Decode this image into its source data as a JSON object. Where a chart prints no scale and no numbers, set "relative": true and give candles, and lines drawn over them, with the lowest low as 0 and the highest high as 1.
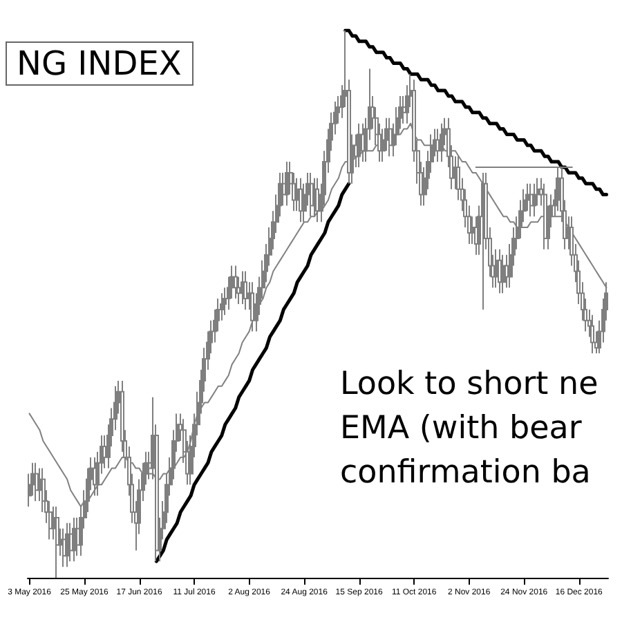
{
  "chart_data": {
    "type": "candlestick",
    "title": "NG INDEX",
    "annotations": [
      "Look to short ne\nEMA (with bear\nconfirmation ba"
    ],
    "relative": true,
    "tick_labels": "x",
    "marker": "none",
    "line_style": "solid",
    "categories": [
      "3 May 2016",
      null,
      null,
      null,
      null,
      null,
      null,
      null,
      null,
      null,
      null,
      null,
      null,
      null,
      null,
      null,
      "25 May 2016",
      null,
      null,
      null,
      null,
      null,
      null,
      null,
      null,
      null,
      null,
      null,
      null,
      null,
      null,
      null,
      "17 Jun 2016",
      null,
      null,
      null,
      null,
      null,
      null,
      null,
      null,
      null,
      null,
      null,
      null,
      null,
      null,
      null,
      "11 Jul 2016",
      null,
      null,
      null,
      null,
      null,
      null,
      null,
      null,
      null,
      null,
      null,
      null,
      null,
      null,
      null,
      "2 Aug 2016",
      null,
      null,
      null,
      null,
      null,
      null,
      null,
      null,
      null,
      null,
      null,
      null,
      null,
      null,
      null,
      "24 Aug 2016",
      null,
      null,
      null,
      null,
      null,
      null,
      null,
      null,
      null,
      null,
      null,
      null,
      null,
      null,
      null,
      "15 Sep 2016",
      null,
      null,
      null,
      null,
      null,
      null,
      null,
      null,
      null,
      null,
      null,
      null,
      null,
      null,
      null,
      "11 Oct 2016",
      null,
      null,
      null,
      null,
      null,
      null,
      null,
      null,
      null,
      null,
      null,
      null,
      null,
      null,
      null,
      "2 Nov 2016",
      null,
      null,
      null,
      null,
      null,
      null,
      null,
      null,
      null,
      null,
      null,
      null,
      null,
      null,
      null,
      "24 Nov 2016",
      null,
      null,
      null,
      null,
      null,
      null,
      null,
      null,
      null,
      null,
      null,
      null,
      null,
      null,
      null,
      "16 Dec 2016",
      null,
      null,
      null,
      null,
      null,
      null,
      null,
      null
    ],
    "series": [
      {
        "type": "line",
        "color": "#808080",
        "values": [
          0.3,
          0.29,
          0.28,
          0.27,
          0.25,
          0.24,
          0.23,
          0.22,
          0.21,
          0.2,
          0.19,
          0.18,
          0.16,
          0.15,
          0.14,
          0.13,
          0.14,
          0.14,
          0.15,
          0.16,
          0.17,
          0.17,
          0.18,
          0.19,
          0.2,
          0.2,
          0.21,
          0.22,
          0.22,
          0.21,
          0.21,
          0.2,
          0.2,
          0.19,
          0.19,
          0.19,
          0.19,
          0.18,
          0.18,
          0.19,
          0.19,
          0.2,
          0.2,
          0.21,
          0.22,
          0.22,
          0.23,
          0.25,
          0.28,
          0.3,
          0.31,
          0.32,
          0.32,
          0.33,
          0.34,
          0.35,
          0.35,
          0.36,
          0.37,
          0.39,
          0.4,
          0.41,
          0.43,
          0.44,
          0.45,
          0.47,
          0.48,
          0.5,
          0.51,
          0.53,
          0.54,
          0.56,
          0.57,
          0.58,
          0.59,
          0.6,
          0.61,
          0.62,
          0.63,
          0.64,
          0.65,
          0.65,
          0.66,
          0.66,
          0.67,
          0.67,
          0.68,
          0.69,
          0.71,
          0.72,
          0.73,
          0.75,
          0.76,
          0.76,
          0.76,
          0.77,
          0.77,
          0.78,
          0.78,
          0.78,
          0.78,
          0.79,
          0.79,
          0.79,
          0.8,
          0.8,
          0.8,
          0.81,
          0.81,
          0.82,
          0.82,
          0.83,
          0.81,
          0.8,
          0.8,
          0.79,
          0.79,
          0.79,
          0.79,
          0.79,
          0.79,
          0.78,
          0.78,
          0.78,
          0.78,
          0.77,
          0.76,
          0.76,
          0.75,
          0.74,
          0.74,
          0.73,
          0.72,
          0.71,
          0.7,
          0.69,
          0.68,
          0.67,
          0.66,
          0.66,
          0.65,
          0.65,
          0.64,
          0.64,
          0.64,
          0.64,
          0.65,
          0.65,
          0.65,
          0.66,
          0.66,
          0.66,
          0.66,
          0.66,
          0.66,
          0.66,
          0.65,
          0.64,
          0.63,
          0.62,
          0.61,
          0.6,
          0.59,
          0.58,
          0.57,
          0.56,
          0.55,
          0.54,
          0.53
        ]
      },
      {
        "type": "line",
        "color": "#000000",
        "values": [
          null,
          null,
          null,
          null,
          null,
          null,
          null,
          null,
          null,
          null,
          null,
          null,
          null,
          null,
          null,
          null,
          null,
          null,
          null,
          null,
          null,
          null,
          null,
          null,
          null,
          null,
          null,
          null,
          null,
          null,
          null,
          null,
          null,
          null,
          null,
          null,
          null,
          0.03,
          0.04,
          0.05,
          0.07,
          0.08,
          0.09,
          0.1,
          0.12,
          0.13,
          0.14,
          0.15,
          0.17,
          0.18,
          0.19,
          0.2,
          0.21,
          0.23,
          0.24,
          0.25,
          0.26,
          0.28,
          0.29,
          0.3,
          0.31,
          0.33,
          0.34,
          0.35,
          0.36,
          0.38,
          0.39,
          0.4,
          0.41,
          0.42,
          0.44,
          0.45,
          0.46,
          0.47,
          0.49,
          0.5,
          0.51,
          0.52,
          0.54,
          0.55,
          0.56,
          0.57,
          0.59,
          0.6,
          0.61,
          0.62,
          0.63,
          0.65,
          0.66,
          0.67,
          0.68,
          0.7,
          0.71,
          0.72,
          null,
          null,
          null,
          null,
          null,
          null,
          null,
          null,
          null,
          null,
          null,
          null,
          null,
          null,
          null,
          null,
          null,
          null,
          null,
          null,
          null,
          null,
          null,
          null,
          null,
          null,
          null,
          null,
          null,
          null,
          null,
          null,
          null,
          null,
          null,
          null,
          null,
          null,
          null,
          null,
          null,
          null,
          null,
          null,
          null,
          null,
          null,
          null,
          null,
          null,
          null,
          null,
          null,
          null,
          null,
          null,
          null,
          null,
          null,
          null,
          null,
          null,
          null,
          null,
          null,
          null,
          null,
          null,
          null,
          null,
          null,
          null,
          null,
          null,
          null
        ]
      },
      {
        "type": "line",
        "color": "#000000",
        "values": [
          null,
          null,
          null,
          null,
          null,
          null,
          null,
          null,
          null,
          null,
          null,
          null,
          null,
          null,
          null,
          null,
          null,
          null,
          null,
          null,
          null,
          null,
          null,
          null,
          null,
          null,
          null,
          null,
          null,
          null,
          null,
          null,
          null,
          null,
          null,
          null,
          null,
          null,
          null,
          null,
          null,
          null,
          null,
          null,
          null,
          null,
          null,
          null,
          null,
          null,
          null,
          null,
          null,
          null,
          null,
          null,
          null,
          null,
          null,
          null,
          null,
          null,
          null,
          null,
          null,
          null,
          null,
          null,
          null,
          null,
          null,
          null,
          null,
          null,
          null,
          null,
          null,
          null,
          null,
          null,
          null,
          null,
          null,
          null,
          null,
          null,
          null,
          null,
          null,
          null,
          null,
          null,
          1.0,
          1.0,
          0.99,
          0.99,
          0.98,
          0.98,
          0.98,
          0.97,
          0.97,
          0.96,
          0.96,
          0.96,
          0.95,
          0.95,
          0.94,
          0.94,
          0.94,
          0.93,
          0.93,
          0.92,
          0.92,
          0.92,
          0.91,
          0.91,
          0.91,
          0.9,
          0.9,
          0.89,
          0.89,
          0.89,
          0.88,
          0.88,
          0.87,
          0.87,
          0.87,
          0.86,
          0.86,
          0.85,
          0.85,
          0.85,
          0.84,
          0.84,
          0.83,
          0.83,
          0.83,
          0.82,
          0.82,
          0.81,
          0.81,
          0.81,
          0.8,
          0.8,
          0.8,
          0.79,
          0.79,
          0.78,
          0.78,
          0.78,
          0.77,
          0.77,
          0.76,
          0.76,
          0.76,
          0.75,
          0.75,
          0.74,
          0.74,
          0.74,
          0.73,
          0.73,
          0.72,
          0.72,
          0.72,
          0.71,
          0.71,
          0.7,
          0.7
        ]
      },
      {
        "type": "line",
        "color": "#808080",
        "values": [
          null,
          null,
          null,
          null,
          null,
          null,
          null,
          null,
          null,
          null,
          null,
          null,
          null,
          null,
          null,
          null,
          null,
          null,
          null,
          null,
          null,
          null,
          null,
          null,
          null,
          null,
          null,
          null,
          null,
          null,
          null,
          null,
          null,
          null,
          null,
          null,
          null,
          null,
          null,
          null,
          null,
          null,
          null,
          null,
          null,
          null,
          null,
          null,
          null,
          null,
          null,
          null,
          null,
          null,
          null,
          null,
          null,
          null,
          null,
          null,
          null,
          null,
          null,
          null,
          null,
          null,
          null,
          null,
          null,
          null,
          null,
          null,
          null,
          null,
          null,
          null,
          null,
          null,
          null,
          null,
          null,
          null,
          null,
          null,
          null,
          null,
          null,
          null,
          null,
          null,
          null,
          null,
          null,
          null,
          null,
          null,
          null,
          null,
          null,
          null,
          null,
          null,
          null,
          null,
          null,
          null,
          null,
          null,
          null,
          null,
          null,
          null,
          null,
          null,
          null,
          null,
          null,
          null,
          null,
          null,
          null,
          null,
          null,
          null,
          null,
          null,
          null,
          null,
          null,
          null,
          0.75,
          0.75,
          0.75,
          0.75,
          0.75,
          0.75,
          0.75,
          0.75,
          0.75,
          0.75,
          0.75,
          0.75,
          0.75,
          0.75,
          0.75,
          0.75,
          0.75,
          0.75,
          0.75,
          0.75,
          0.75,
          0.75,
          0.75,
          0.75,
          0.75,
          0.75,
          0.75,
          0.75,
          0.75,
          null,
          null,
          null,
          null,
          null,
          null,
          null,
          null,
          null,
          null
        ]
      },
      {
        "color": "#7f7f7f",
        "ohlc": [
          [
            0.15,
            0.19,
            0.13,
            0.17
          ],
          [
            0.17,
            0.21,
            0.15,
            0.19
          ],
          [
            0.19,
            0.21,
            0.14,
            0.16
          ],
          [
            0.16,
            0.2,
            0.14,
            0.18
          ],
          [
            0.18,
            0.2,
            0.12,
            0.14
          ],
          [
            0.14,
            0.16,
            0.1,
            0.12
          ],
          [
            0.12,
            0.14,
            0.07,
            0.09
          ],
          [
            0.09,
            0.13,
            0.07,
            0.11
          ],
          [
            0.11,
            0.13,
            0,
            0.06
          ],
          [
            0.06,
            0.09,
            0.04,
            0.07
          ],
          [
            0.07,
            0.09,
            0.02,
            0.04
          ],
          [
            0.04,
            0.1,
            0.02,
            0.08
          ],
          [
            0.08,
            0.1,
            0.03,
            0.05
          ],
          [
            0.05,
            0.11,
            0.03,
            0.09
          ],
          [
            0.09,
            0.11,
            0.04,
            0.06
          ],
          [
            0.06,
            0.13,
            0.04,
            0.11
          ],
          [
            0.11,
            0.16,
            0.09,
            0.14
          ],
          [
            0.14,
            0.2,
            0.12,
            0.18
          ],
          [
            0.18,
            0.22,
            0.16,
            0.2
          ],
          [
            0.2,
            0.22,
            0.15,
            0.17
          ],
          [
            0.17,
            0.23,
            0.15,
            0.21
          ],
          [
            0.21,
            0.26,
            0.19,
            0.24
          ],
          [
            0.24,
            0.26,
            0.2,
            0.22
          ],
          [
            0.22,
            0.28,
            0.2,
            0.26
          ],
          [
            0.26,
            0.31,
            0.24,
            0.29
          ],
          [
            0.29,
            0.35,
            0.27,
            0.32
          ],
          [
            0.32,
            0.36,
            0.3,
            0.34
          ],
          [
            0.34,
            0.36,
            0.23,
            0.25
          ],
          [
            0.25,
            0.27,
            0.2,
            0.22
          ],
          [
            0.22,
            0.24,
            0.15,
            0.17
          ],
          [
            0.17,
            0.19,
            0.1,
            0.12
          ],
          [
            0.12,
            0.14,
            0.05,
            0.1
          ],
          [
            0.1,
            0.18,
            0.08,
            0.16
          ],
          [
            0.16,
            0.21,
            0.14,
            0.19
          ],
          [
            0.19,
            0.23,
            0.17,
            0.21
          ],
          [
            0.21,
            0.23,
            0.18,
            0.2
          ],
          [
            0.2,
            0.33,
            0.18,
            0.26
          ],
          [
            0.26,
            0.28,
            0.03,
            0.05
          ],
          [
            0.05,
            0.11,
            0.03,
            0.09
          ],
          [
            0.09,
            0.14,
            0.07,
            0.12
          ],
          [
            0.12,
            0.19,
            0.1,
            0.17
          ],
          [
            0.17,
            0.22,
            0.15,
            0.2
          ],
          [
            0.2,
            0.27,
            0.18,
            0.25
          ],
          [
            0.25,
            0.3,
            0.23,
            0.28
          ],
          [
            0.28,
            0.3,
            0.25,
            0.27
          ],
          [
            0.27,
            0.29,
            0.21,
            0.23
          ],
          [
            0.23,
            0.25,
            0.17,
            0.19
          ],
          [
            0.19,
            0.26,
            0.17,
            0.24
          ],
          [
            0.24,
            0.3,
            0.22,
            0.28
          ],
          [
            0.28,
            0.34,
            0.26,
            0.32
          ],
          [
            0.32,
            0.38,
            0.3,
            0.36
          ],
          [
            0.36,
            0.42,
            0.34,
            0.4
          ],
          [
            0.4,
            0.45,
            0.38,
            0.43
          ],
          [
            0.43,
            0.47,
            0.41,
            0.45
          ],
          [
            0.45,
            0.49,
            0.43,
            0.47
          ],
          [
            0.47,
            0.51,
            0.45,
            0.49
          ],
          [
            0.49,
            0.52,
            0.47,
            0.5
          ],
          [
            0.5,
            0.53,
            0.48,
            0.51
          ],
          [
            0.51,
            0.55,
            0.49,
            0.53
          ],
          [
            0.53,
            0.57,
            0.51,
            0.55
          ],
          [
            0.55,
            0.57,
            0.51,
            0.53
          ],
          [
            0.53,
            0.55,
            0.5,
            0.52
          ],
          [
            0.52,
            0.56,
            0.5,
            0.54
          ],
          [
            0.54,
            0.56,
            0.49,
            0.51
          ],
          [
            0.51,
            0.54,
            0.49,
            0.52
          ],
          [
            0.52,
            0.54,
            0.45,
            0.47
          ],
          [
            0.47,
            0.52,
            0.45,
            0.5
          ],
          [
            0.5,
            0.55,
            0.48,
            0.53
          ],
          [
            0.53,
            0.58,
            0.51,
            0.56
          ],
          [
            0.56,
            0.61,
            0.54,
            0.59
          ],
          [
            0.59,
            0.64,
            0.57,
            0.62
          ],
          [
            0.62,
            0.67,
            0.6,
            0.65
          ],
          [
            0.65,
            0.7,
            0.63,
            0.68
          ],
          [
            0.68,
            0.74,
            0.66,
            0.72
          ],
          [
            0.72,
            0.74,
            0.68,
            0.7
          ],
          [
            0.7,
            0.76,
            0.68,
            0.74
          ],
          [
            0.74,
            0.76,
            0.7,
            0.72
          ],
          [
            0.72,
            0.74,
            0.67,
            0.69
          ],
          [
            0.69,
            0.73,
            0.67,
            0.71
          ],
          [
            0.71,
            0.73,
            0.65,
            0.67
          ],
          [
            0.67,
            0.72,
            0.65,
            0.7
          ],
          [
            0.7,
            0.74,
            0.68,
            0.72
          ],
          [
            0.72,
            0.74,
            0.66,
            0.68
          ],
          [
            0.68,
            0.73,
            0.66,
            0.71
          ],
          [
            0.71,
            0.73,
            0.65,
            0.67
          ],
          [
            0.67,
            0.72,
            0.65,
            0.7
          ],
          [
            0.7,
            0.78,
            0.68,
            0.76
          ],
          [
            0.76,
            0.82,
            0.74,
            0.8
          ],
          [
            0.8,
            0.85,
            0.78,
            0.83
          ],
          [
            0.83,
            0.87,
            0.81,
            0.85
          ],
          [
            0.85,
            0.88,
            0.83,
            0.86
          ],
          [
            0.86,
            0.9,
            0.84,
            0.88
          ],
          [
            0.88,
            1.0,
            0.86,
            0.89
          ],
          [
            0.89,
            0.91,
            0.72,
            0.74
          ],
          [
            0.74,
            0.81,
            0.72,
            0.79
          ],
          [
            0.79,
            0.81,
            0.75,
            0.77
          ],
          [
            0.77,
            0.83,
            0.75,
            0.81
          ],
          [
            0.81,
            0.83,
            0.76,
            0.78
          ],
          [
            0.78,
            0.84,
            0.76,
            0.82
          ],
          [
            0.82,
            0.93,
            0.8,
            0.86
          ],
          [
            0.86,
            0.88,
            0.82,
            0.84
          ],
          [
            0.84,
            0.86,
            0.79,
            0.81
          ],
          [
            0.81,
            0.83,
            0.76,
            0.78
          ],
          [
            0.78,
            0.82,
            0.76,
            0.8
          ],
          [
            0.8,
            0.84,
            0.78,
            0.82
          ],
          [
            0.82,
            0.84,
            0.77,
            0.79
          ],
          [
            0.79,
            0.83,
            0.77,
            0.81
          ],
          [
            0.81,
            0.86,
            0.79,
            0.84
          ],
          [
            0.84,
            0.88,
            0.82,
            0.86
          ],
          [
            0.86,
            0.88,
            0.83,
            0.85
          ],
          [
            0.85,
            0.9,
            0.83,
            0.88
          ],
          [
            0.88,
            0.92,
            0.86,
            0.89
          ],
          [
            0.89,
            0.91,
            0.76,
            0.78
          ],
          [
            0.78,
            0.8,
            0.72,
            0.74
          ],
          [
            0.74,
            0.76,
            0.68,
            0.7
          ],
          [
            0.7,
            0.75,
            0.68,
            0.73
          ],
          [
            0.73,
            0.78,
            0.71,
            0.76
          ],
          [
            0.76,
            0.81,
            0.74,
            0.79
          ],
          [
            0.79,
            0.82,
            0.77,
            0.8
          ],
          [
            0.8,
            0.82,
            0.76,
            0.78
          ],
          [
            0.78,
            0.83,
            0.76,
            0.81
          ],
          [
            0.81,
            0.84,
            0.79,
            0.82
          ],
          [
            0.82,
            0.84,
            0.75,
            0.77
          ],
          [
            0.77,
            0.79,
            0.71,
            0.73
          ],
          [
            0.73,
            0.77,
            0.71,
            0.75
          ],
          [
            0.75,
            0.77,
            0.69,
            0.71
          ],
          [
            0.71,
            0.73,
            0.67,
            0.69
          ],
          [
            0.69,
            0.71,
            0.64,
            0.66
          ],
          [
            0.66,
            0.68,
            0.61,
            0.63
          ],
          [
            0.63,
            0.66,
            0.61,
            0.64
          ],
          [
            0.64,
            0.66,
            0.59,
            0.61
          ],
          [
            0.61,
            0.68,
            0.59,
            0.66
          ],
          [
            0.66,
            0.74,
            0.49,
            0.72
          ],
          [
            0.72,
            0.74,
            0.6,
            0.62
          ],
          [
            0.62,
            0.64,
            0.55,
            0.57
          ],
          [
            0.57,
            0.59,
            0.53,
            0.55
          ],
          [
            0.55,
            0.6,
            0.53,
            0.58
          ],
          [
            0.58,
            0.6,
            0.52,
            0.54
          ],
          [
            0.54,
            0.59,
            0.52,
            0.57
          ],
          [
            0.57,
            0.59,
            0.53,
            0.55
          ],
          [
            0.55,
            0.61,
            0.53,
            0.59
          ],
          [
            0.59,
            0.64,
            0.57,
            0.62
          ],
          [
            0.62,
            0.66,
            0.6,
            0.64
          ],
          [
            0.64,
            0.69,
            0.62,
            0.67
          ],
          [
            0.67,
            0.71,
            0.65,
            0.69
          ],
          [
            0.69,
            0.72,
            0.67,
            0.7
          ],
          [
            0.7,
            0.72,
            0.66,
            0.68
          ],
          [
            0.68,
            0.72,
            0.66,
            0.7
          ],
          [
            0.7,
            0.73,
            0.68,
            0.71
          ],
          [
            0.71,
            0.73,
            0.68,
            0.7
          ],
          [
            0.7,
            0.72,
            0.6,
            0.62
          ],
          [
            0.62,
            0.68,
            0.6,
            0.66
          ],
          [
            0.66,
            0.7,
            0.64,
            0.68
          ],
          [
            0.68,
            0.71,
            0.66,
            0.69
          ],
          [
            0.69,
            0.75,
            0.67,
            0.73
          ],
          [
            0.73,
            0.75,
            0.65,
            0.67
          ],
          [
            0.67,
            0.69,
            0.6,
            0.62
          ],
          [
            0.62,
            0.66,
            0.6,
            0.64
          ],
          [
            0.64,
            0.66,
            0.57,
            0.59
          ],
          [
            0.59,
            0.61,
            0.54,
            0.56
          ],
          [
            0.56,
            0.58,
            0.5,
            0.52
          ],
          [
            0.52,
            0.54,
            0.47,
            0.49
          ],
          [
            0.49,
            0.51,
            0.45,
            0.47
          ],
          [
            0.47,
            0.49,
            0.44,
            0.46
          ],
          [
            0.46,
            0.48,
            0.41,
            0.43
          ],
          [
            0.43,
            0.45,
            0.41,
            0.42
          ],
          [
            0.42,
            0.47,
            0.41,
            0.45
          ],
          [
            0.45,
            0.51,
            0.43,
            0.49
          ],
          [
            0.49,
            0.54,
            0.47,
            0.52
          ]
        ]
      }
    ]
  }
}
